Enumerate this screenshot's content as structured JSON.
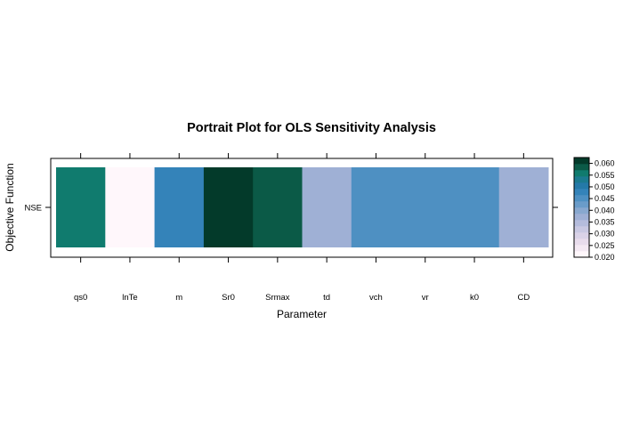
{
  "chart_data": {
    "type": "heatmap",
    "title": "Portrait Plot for OLS Sensitivity Analysis",
    "xlabel": "Parameter",
    "ylabel": "Objective Function",
    "x_categories": [
      "qs0",
      "lnTe",
      "m",
      "Sr0",
      "Srmax",
      "td",
      "vch",
      "vr",
      "k0",
      "CD"
    ],
    "y_categories": [
      "NSE"
    ],
    "values": [
      [
        0.056,
        0.02,
        0.047,
        0.062,
        0.059,
        0.037,
        0.046,
        0.046,
        0.046,
        0.037
      ]
    ],
    "colorbar": {
      "ticks": [
        "0.020",
        "0.025",
        "0.030",
        "0.035",
        "0.040",
        "0.045",
        "0.050",
        "0.055",
        "0.060"
      ],
      "range": [
        0.02,
        0.0625
      ],
      "position": "right"
    },
    "grid": false,
    "colors": {
      "low": "#fff7fb",
      "mid": "#3690c0",
      "high": "#023f2c"
    }
  }
}
